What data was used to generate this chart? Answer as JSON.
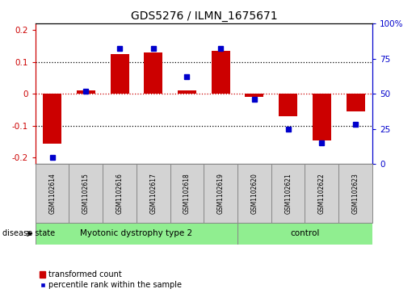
{
  "title": "GDS5276 / ILMN_1675671",
  "samples": [
    "GSM1102614",
    "GSM1102615",
    "GSM1102616",
    "GSM1102617",
    "GSM1102618",
    "GSM1102619",
    "GSM1102620",
    "GSM1102621",
    "GSM1102622",
    "GSM1102623"
  ],
  "red_values": [
    -0.155,
    0.01,
    0.125,
    0.13,
    0.01,
    0.135,
    -0.01,
    -0.07,
    -0.145,
    -0.055
  ],
  "blue_values": [
    5,
    52,
    82,
    82,
    62,
    82,
    46,
    25,
    15,
    28
  ],
  "group1_label": "Myotonic dystrophy type 2",
  "group1_samples": 6,
  "group2_label": "control",
  "group2_samples": 4,
  "ylim_left": [
    -0.22,
    0.22
  ],
  "ylim_right": [
    0,
    100
  ],
  "yticks_left": [
    -0.2,
    -0.1,
    0.0,
    0.1,
    0.2
  ],
  "yticks_right": [
    0,
    25,
    50,
    75,
    100
  ],
  "yticklabels_left": [
    "-0.2",
    "-0.1",
    "0",
    "0.1",
    "0.2"
  ],
  "yticklabels_right": [
    "0",
    "25",
    "50",
    "75",
    "100%"
  ],
  "red_color": "#CC0000",
  "blue_color": "#0000CC",
  "bar_width": 0.55,
  "dotted_lines": [
    -0.1,
    0.0,
    0.1
  ],
  "red_dotted": 0.0,
  "legend_labels": [
    "transformed count",
    "percentile rank within the sample"
  ],
  "disease_state_label": "disease state",
  "group_color": "#90EE90",
  "sample_box_color": "#d3d3d3",
  "sample_box_edge": "#888888",
  "title_fontsize": 10,
  "tick_fontsize": 7.5,
  "legend_fontsize": 7,
  "sample_fontsize": 5.5,
  "group_fontsize": 7.5,
  "disease_state_fontsize": 7
}
